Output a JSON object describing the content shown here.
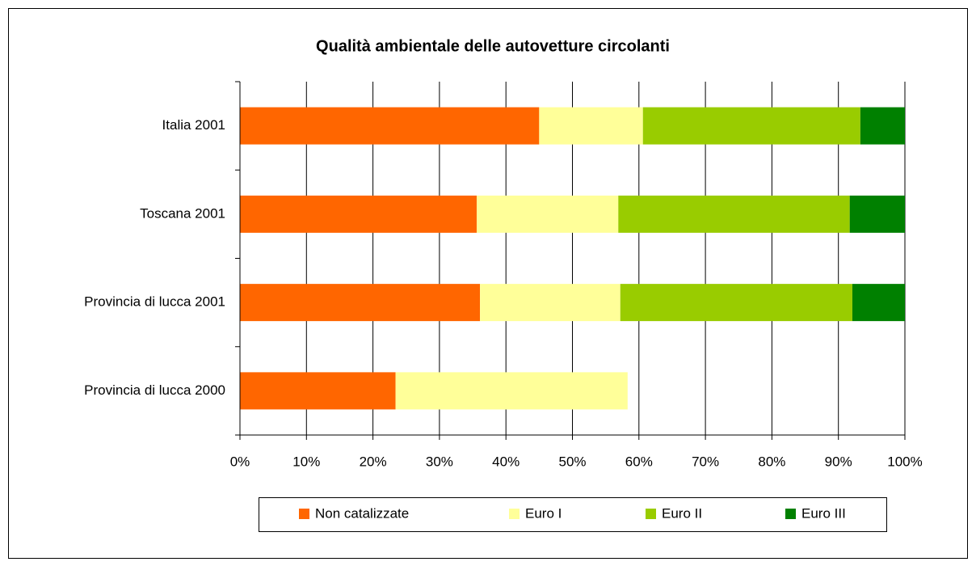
{
  "chart_data": {
    "type": "stacked-barh",
    "title": "Qualità ambientale delle autovetture circolanti",
    "categories": [
      "Italia 2001",
      "Toscana 2001",
      "Provincia di lucca 2001",
      "Provincia di lucca 2000"
    ],
    "series": [
      {
        "name": "Non catalizzate",
        "color": "#ff6600",
        "values": [
          45.0,
          35.6,
          36.1,
          23.4
        ]
      },
      {
        "name": "Euro I",
        "color": "#ffff99",
        "values": [
          15.6,
          21.3,
          21.1,
          34.9
        ]
      },
      {
        "name": "Euro II",
        "color": "#99cc00",
        "values": [
          32.7,
          34.8,
          34.9,
          null
        ]
      },
      {
        "name": "Euro III",
        "color": "#008000",
        "values": [
          6.7,
          8.3,
          7.9,
          null
        ]
      }
    ],
    "xlim": [
      0,
      100
    ],
    "xticks": [
      {
        "value": 0,
        "label": "0%"
      },
      {
        "value": 10,
        "label": "10%"
      },
      {
        "value": 20,
        "label": "20%"
      },
      {
        "value": 30,
        "label": "30%"
      },
      {
        "value": 40,
        "label": "40%"
      },
      {
        "value": 50,
        "label": "50%"
      },
      {
        "value": 60,
        "label": "60%"
      },
      {
        "value": 70,
        "label": "70%"
      },
      {
        "value": 80,
        "label": "80%"
      },
      {
        "value": 90,
        "label": "90%"
      },
      {
        "value": 100,
        "label": "100%"
      }
    ],
    "grid": true,
    "legend": "bottom"
  }
}
